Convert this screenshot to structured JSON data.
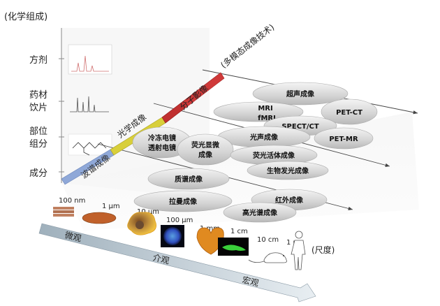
{
  "y_axis": {
    "title": "(化学组成)",
    "levels": [
      "方剂",
      "药材",
      "饮片",
      "部位",
      "组分",
      "成分"
    ]
  },
  "x_axis": {
    "title": "(尺度)",
    "scales": [
      "100 nm",
      "1 μm",
      "10 μm",
      "100 μm",
      "1 mm",
      "1 cm",
      "10 cm",
      "1 m"
    ],
    "ranges": [
      "微观",
      "介观",
      "宏观"
    ]
  },
  "technique_bar": {
    "segments": [
      {
        "label": "波谱成像",
        "color": "#8fa8d8"
      },
      {
        "label": "光学成像",
        "color": "#d8cf3a"
      },
      {
        "label": "分子影像",
        "color": "#c03030"
      },
      {
        "label": "(多模态成像技术)",
        "color": "#d84040"
      }
    ]
  },
  "technique_ellipses": [
    "超声成像",
    "MRI",
    "fMRI",
    "PET-CT",
    "SPECT/CT",
    "光声成像",
    "PET-MR",
    "冷冻电镜",
    "透射电镜",
    "荧光显微",
    "成像",
    "荧光活体成像",
    "生物发光成像",
    "质谱成像",
    "红外成像",
    "拉曼成像",
    "高光谱成像"
  ]
}
